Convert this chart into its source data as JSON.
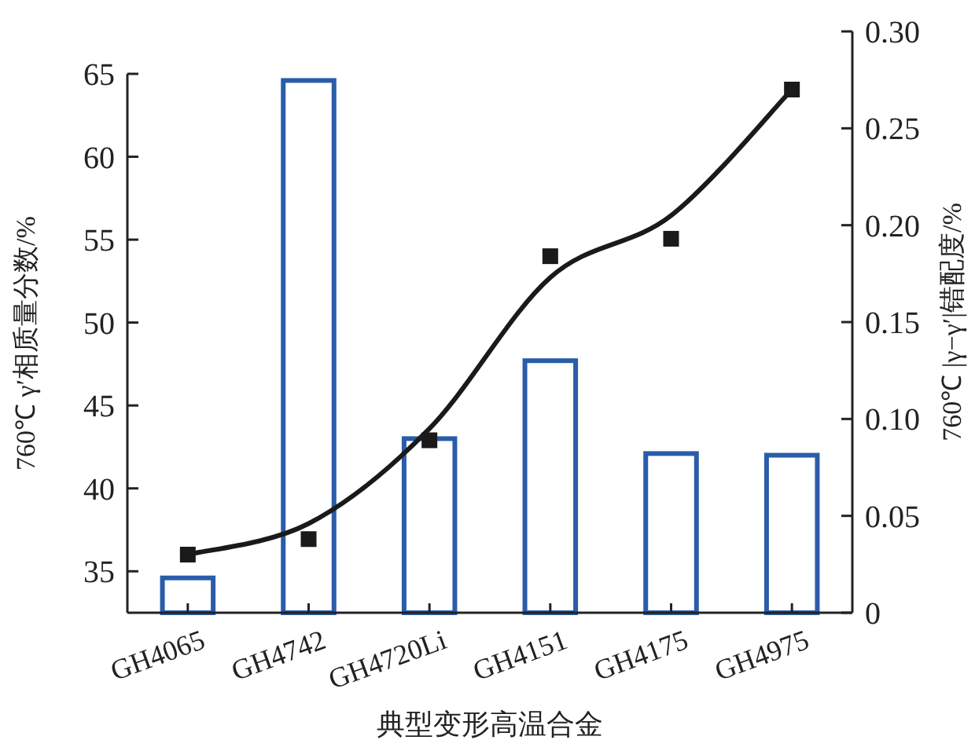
{
  "chart_data": {
    "type": "bar",
    "xlabel": "典型变形高温合金",
    "ylabel": "760℃ γ′相质量分数/%",
    "y2label": "760℃ |γ−γ′|错配度/%",
    "categories": [
      "GH4065",
      "GH4742",
      "GH4720Li",
      "GH4151",
      "GH4175",
      "GH4975"
    ],
    "ylim": [
      32.5,
      65
    ],
    "yticks": [
      35,
      40,
      45,
      50,
      55,
      60,
      65
    ],
    "y2lim": [
      0,
      0.3
    ],
    "y2ticks": [
      0,
      0.05,
      {
        "value": 0.1,
        "label": "0.10"
      },
      0.15,
      {
        "value": 0.2,
        "label": "0.20"
      },
      0.25,
      {
        "value": 0.3,
        "label": "0.30"
      }
    ],
    "grid": false,
    "series": [
      {
        "color": "#2a5caa",
        "values": [
          34.6,
          64.6,
          43.0,
          47.7,
          42.1,
          42.0
        ]
      },
      {
        "type": "scatter",
        "axis": "y2",
        "color": "#1a1a1a",
        "marker": "square",
        "values": [
          0.03,
          0.038,
          0.089,
          0.184,
          0.193,
          0.27
        ]
      },
      {
        "type": "line",
        "axis": "y2",
        "color": "#1a1a1a",
        "line_style": "solid",
        "values": [
          0.03,
          0.046,
          0.095,
          0.173,
          0.205,
          0.27
        ]
      }
    ]
  }
}
